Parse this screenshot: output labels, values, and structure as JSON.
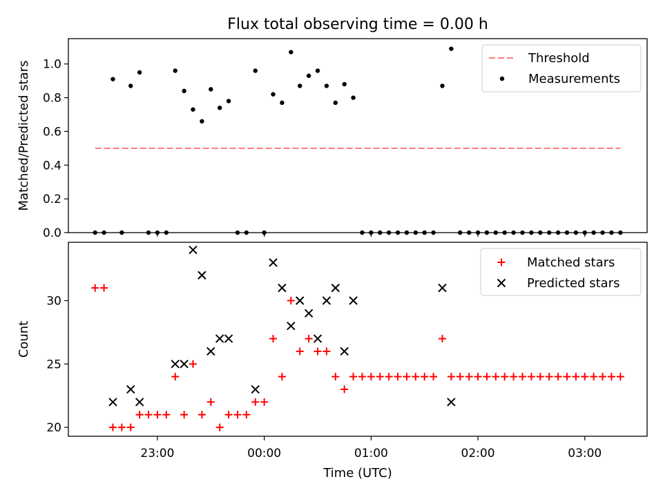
{
  "figure": {
    "title": "Flux total observing time = 0.00 h",
    "xlabel": "Time (UTC)"
  },
  "chart_data": [
    {
      "type": "scatter",
      "title": "Flux total observing time = 0.00 h",
      "xlabel": "",
      "ylabel": "Matched/Predicted stars",
      "ylim": [
        0.0,
        1.15
      ],
      "yticks": [
        0.0,
        0.2,
        0.4,
        0.6,
        0.8,
        1.0
      ],
      "ytick_labels": [
        "0.0",
        "0.2",
        "0.4",
        "0.6",
        "0.8",
        "1.0"
      ],
      "legend": "top-right",
      "grid": false,
      "threshold": {
        "name": "Threshold",
        "y": 0.5,
        "x_start": "22:25",
        "x_end": "03:20",
        "color": "#ff7f7f",
        "style": "dashed"
      },
      "series": [
        {
          "name": "Measurements",
          "color": "#000000",
          "marker": "dot",
          "points": [
            [
              "22:25",
              0.0
            ],
            [
              "22:30",
              0.0
            ],
            [
              "22:35",
              0.91
            ],
            [
              "22:40",
              0.0
            ],
            [
              "22:45",
              0.87
            ],
            [
              "22:50",
              0.95
            ],
            [
              "22:55",
              0.0
            ],
            [
              "23:00",
              0.0
            ],
            [
              "23:05",
              0.0
            ],
            [
              "23:10",
              0.96
            ],
            [
              "23:15",
              0.84
            ],
            [
              "23:20",
              0.73
            ],
            [
              "23:25",
              0.66
            ],
            [
              "23:30",
              0.85
            ],
            [
              "23:35",
              0.74
            ],
            [
              "23:40",
              0.78
            ],
            [
              "23:45",
              0.0
            ],
            [
              "23:50",
              0.0
            ],
            [
              "23:55",
              0.96
            ],
            [
              "00:00",
              0.0
            ],
            [
              "00:05",
              0.82
            ],
            [
              "00:10",
              0.77
            ],
            [
              "00:15",
              1.07
            ],
            [
              "00:20",
              0.87
            ],
            [
              "00:25",
              0.93
            ],
            [
              "00:30",
              0.96
            ],
            [
              "00:35",
              0.87
            ],
            [
              "00:40",
              0.77
            ],
            [
              "00:45",
              0.88
            ],
            [
              "00:50",
              0.8
            ],
            [
              "00:55",
              0.0
            ],
            [
              "01:00",
              0.0
            ],
            [
              "01:05",
              0.0
            ],
            [
              "01:10",
              0.0
            ],
            [
              "01:15",
              0.0
            ],
            [
              "01:20",
              0.0
            ],
            [
              "01:25",
              0.0
            ],
            [
              "01:30",
              0.0
            ],
            [
              "01:35",
              0.0
            ],
            [
              "01:40",
              0.87
            ],
            [
              "01:45",
              1.09
            ],
            [
              "01:50",
              0.0
            ],
            [
              "01:55",
              0.0
            ],
            [
              "02:00",
              0.0
            ],
            [
              "02:05",
              0.0
            ],
            [
              "02:10",
              0.0
            ],
            [
              "02:15",
              0.0
            ],
            [
              "02:20",
              0.0
            ],
            [
              "02:25",
              0.0
            ],
            [
              "02:30",
              0.0
            ],
            [
              "02:35",
              0.0
            ],
            [
              "02:40",
              0.0
            ],
            [
              "02:45",
              0.0
            ],
            [
              "02:50",
              0.0
            ],
            [
              "02:55",
              0.0
            ],
            [
              "03:00",
              0.0
            ],
            [
              "03:05",
              0.0
            ],
            [
              "03:10",
              0.0
            ],
            [
              "03:15",
              0.0
            ],
            [
              "03:20",
              0.0
            ]
          ]
        }
      ]
    },
    {
      "type": "scatter",
      "xlabel": "Time (UTC)",
      "ylabel": "Count",
      "ylim": [
        19.3,
        34.6
      ],
      "yticks": [
        20,
        25,
        30
      ],
      "ytick_labels": [
        "20",
        "25",
        "30"
      ],
      "xlim": [
        "22:10",
        "03:35"
      ],
      "xticks": [
        "23:00",
        "00:00",
        "01:00",
        "02:00",
        "03:00"
      ],
      "xtick_labels": [
        "23:00",
        "00:00",
        "01:00",
        "02:00",
        "03:00"
      ],
      "legend": "top-right",
      "grid": false,
      "series": [
        {
          "name": "Matched stars",
          "color": "#ff0000",
          "marker": "plus",
          "points": [
            [
              "22:25",
              31
            ],
            [
              "22:30",
              31
            ],
            [
              "22:35",
              20
            ],
            [
              "22:40",
              20
            ],
            [
              "22:45",
              20
            ],
            [
              "22:50",
              21
            ],
            [
              "22:55",
              21
            ],
            [
              "23:00",
              21
            ],
            [
              "23:05",
              21
            ],
            [
              "23:10",
              24
            ],
            [
              "23:15",
              21
            ],
            [
              "23:20",
              25
            ],
            [
              "23:25",
              21
            ],
            [
              "23:30",
              22
            ],
            [
              "23:35",
              20
            ],
            [
              "23:40",
              21
            ],
            [
              "23:45",
              21
            ],
            [
              "23:50",
              21
            ],
            [
              "23:55",
              22
            ],
            [
              "00:00",
              22
            ],
            [
              "00:05",
              27
            ],
            [
              "00:10",
              24
            ],
            [
              "00:15",
              30
            ],
            [
              "00:20",
              26
            ],
            [
              "00:25",
              27
            ],
            [
              "00:30",
              26
            ],
            [
              "00:35",
              26
            ],
            [
              "00:40",
              24
            ],
            [
              "00:45",
              23
            ],
            [
              "00:50",
              24
            ],
            [
              "00:55",
              24
            ],
            [
              "01:00",
              24
            ],
            [
              "01:05",
              24
            ],
            [
              "01:10",
              24
            ],
            [
              "01:15",
              24
            ],
            [
              "01:20",
              24
            ],
            [
              "01:25",
              24
            ],
            [
              "01:30",
              24
            ],
            [
              "01:35",
              24
            ],
            [
              "01:40",
              27
            ],
            [
              "01:45",
              24
            ],
            [
              "01:50",
              24
            ],
            [
              "01:55",
              24
            ],
            [
              "02:00",
              24
            ],
            [
              "02:05",
              24
            ],
            [
              "02:10",
              24
            ],
            [
              "02:15",
              24
            ],
            [
              "02:20",
              24
            ],
            [
              "02:25",
              24
            ],
            [
              "02:30",
              24
            ],
            [
              "02:35",
              24
            ],
            [
              "02:40",
              24
            ],
            [
              "02:45",
              24
            ],
            [
              "02:50",
              24
            ],
            [
              "02:55",
              24
            ],
            [
              "03:00",
              24
            ],
            [
              "03:05",
              24
            ],
            [
              "03:10",
              24
            ],
            [
              "03:15",
              24
            ],
            [
              "03:20",
              24
            ]
          ]
        },
        {
          "name": "Predicted stars",
          "color": "#000000",
          "marker": "x",
          "points": [
            [
              "22:35",
              22
            ],
            [
              "22:45",
              23
            ],
            [
              "22:50",
              22
            ],
            [
              "23:10",
              25
            ],
            [
              "23:15",
              25
            ],
            [
              "23:20",
              34
            ],
            [
              "23:25",
              32
            ],
            [
              "23:30",
              26
            ],
            [
              "23:35",
              27
            ],
            [
              "23:40",
              27
            ],
            [
              "23:55",
              23
            ],
            [
              "00:05",
              33
            ],
            [
              "00:10",
              31
            ],
            [
              "00:15",
              28
            ],
            [
              "00:20",
              30
            ],
            [
              "00:25",
              29
            ],
            [
              "00:30",
              27
            ],
            [
              "00:35",
              30
            ],
            [
              "00:40",
              31
            ],
            [
              "00:45",
              26
            ],
            [
              "00:50",
              30
            ],
            [
              "01:40",
              31
            ],
            [
              "01:45",
              22
            ]
          ]
        }
      ]
    }
  ]
}
